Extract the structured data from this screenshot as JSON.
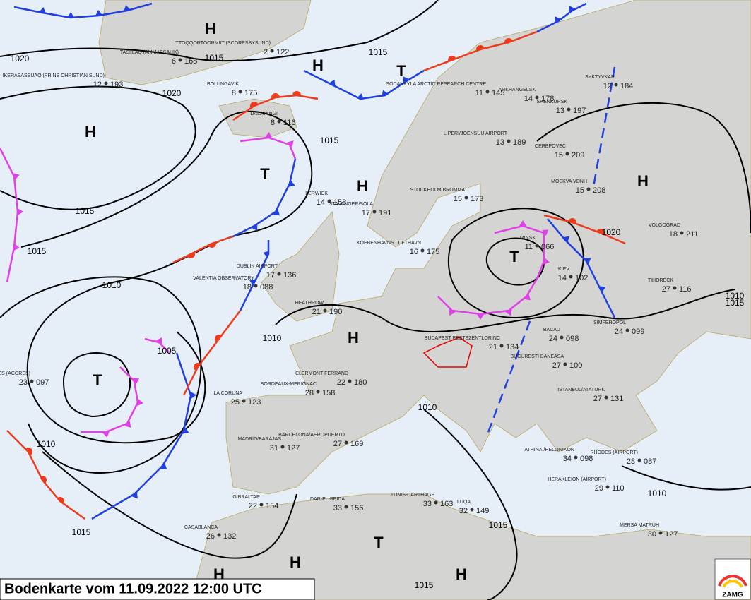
{
  "title": "Bodenkarte vom 11.09.2022 12:00 UTC",
  "logo": "ZAMG",
  "pressure_centers": [
    "H",
    "H",
    "H",
    "H",
    "H",
    "H",
    "H",
    "H",
    "H",
    "T",
    "T",
    "T",
    "T",
    "T"
  ],
  "isobar_labels": [
    1020,
    1020,
    1015,
    1015,
    1015,
    1015,
    1010,
    1010,
    1010,
    1005,
    1010,
    1015,
    1015,
    1020,
    1015,
    1010,
    1015,
    1010,
    1015
  ],
  "stations": [
    {
      "name": "DALATANGI",
      "temp": 8,
      "pres": 116
    },
    {
      "name": "BOLUNGAVIK",
      "temp": 8,
      "pres": 175
    },
    {
      "name": "TASIILAQ (AMMASSALIK)",
      "temp": 6,
      "pres": 168
    },
    {
      "name": "IKERASASSUAQ (PRINS CHRISTIAN SUND)",
      "temp": 12,
      "pres": 193
    },
    {
      "name": "ITTOQQORTOORMIIT (SCORESBYSUND)",
      "temp": 2,
      "pres": 122
    },
    {
      "name": "LERWICK",
      "temp": 14,
      "pres": 158
    },
    {
      "name": "STAVANGER/SOLA",
      "temp": 17,
      "pres": 191
    },
    {
      "name": "HEATHROW",
      "temp": 21,
      "pres": 190
    },
    {
      "name": "DUBLIN AIRPORT",
      "temp": 17,
      "pres": 136
    },
    {
      "name": "VALENTIA OBSERVATORY",
      "temp": 18,
      "pres": "088"
    },
    {
      "name": "KOEBENHAVNS LUFTHAVN",
      "temp": 16,
      "pres": 175
    },
    {
      "name": "STOCKHOLM/BROMMA",
      "temp": 15,
      "pres": 173
    },
    {
      "name": "LIPERI/JOENSUU AIRPORT",
      "temp": 13,
      "pres": 189
    },
    {
      "name": "SODANKYLA ARCTIC RESEARCH CENTRE",
      "temp": 11,
      "pres": 145
    },
    {
      "name": "ARKHANGELSK",
      "temp": 14,
      "pres": 178
    },
    {
      "name": "SHENKURSK",
      "temp": 13,
      "pres": 197
    },
    {
      "name": "SYKTYVKAR",
      "temp": 12,
      "pres": 184
    },
    {
      "name": "CEREPOVEC",
      "temp": 15,
      "pres": 209
    },
    {
      "name": "MOSKVA VDNH",
      "temp": 15,
      "pres": 208
    },
    {
      "name": "VOLGOGRAD",
      "temp": 18,
      "pres": 211
    },
    {
      "name": "MINSK",
      "temp": 11,
      "pres": "066"
    },
    {
      "name": "KIEV",
      "temp": 14,
      "pres": 102
    },
    {
      "name": "TIHORECK",
      "temp": 27,
      "pres": 116
    },
    {
      "name": "SIMFEROPOL",
      "temp": 24,
      "pres": "099"
    },
    {
      "name": "BACAU",
      "temp": 24,
      "pres": "098"
    },
    {
      "name": "BUCURESTI BANEASA",
      "temp": 27,
      "pres": 100
    },
    {
      "name": "ISTANBUL/ATATURK",
      "temp": 27,
      "pres": 131
    },
    {
      "name": "BUDAPEST PESTSZENTLORINC",
      "temp": 21,
      "pres": 134
    },
    {
      "name": "LA CORUNA",
      "temp": 25,
      "pres": 123
    },
    {
      "name": "BORDEAUX-MERIGNAC",
      "temp": 28,
      "pres": 158
    },
    {
      "name": "CLERMONT-FERRAND",
      "temp": 22,
      "pres": 180
    },
    {
      "name": "MADRID/BARAJAS",
      "temp": 31,
      "pres": 127
    },
    {
      "name": "BARCELONA/AEROPUERTO",
      "temp": 27,
      "pres": 169
    },
    {
      "name": "GIBRALTAR",
      "temp": 22,
      "pres": 154
    },
    {
      "name": "LAJES (ACORES)",
      "temp": 23,
      "pres": "097"
    },
    {
      "name": "CASABLANCA",
      "temp": 26,
      "pres": 132
    },
    {
      "name": "DAR-EL-BEIDA",
      "temp": 33,
      "pres": 156
    },
    {
      "name": "TUNIS-CARTHAGE",
      "temp": 33,
      "pres": 163
    },
    {
      "name": "LUQA",
      "temp": 32,
      "pres": 149
    },
    {
      "name": "ATHINAI/HELLINIKON",
      "temp": 34,
      "pres": "098"
    },
    {
      "name": "RHODES (AIRPORT)",
      "temp": 28,
      "pres": "087"
    },
    {
      "name": "HERAKLEION (AIRPORT)",
      "temp": 29,
      "pres": 110
    },
    {
      "name": "MERSA MATRUH",
      "temp": 30,
      "pres": 127
    }
  ]
}
